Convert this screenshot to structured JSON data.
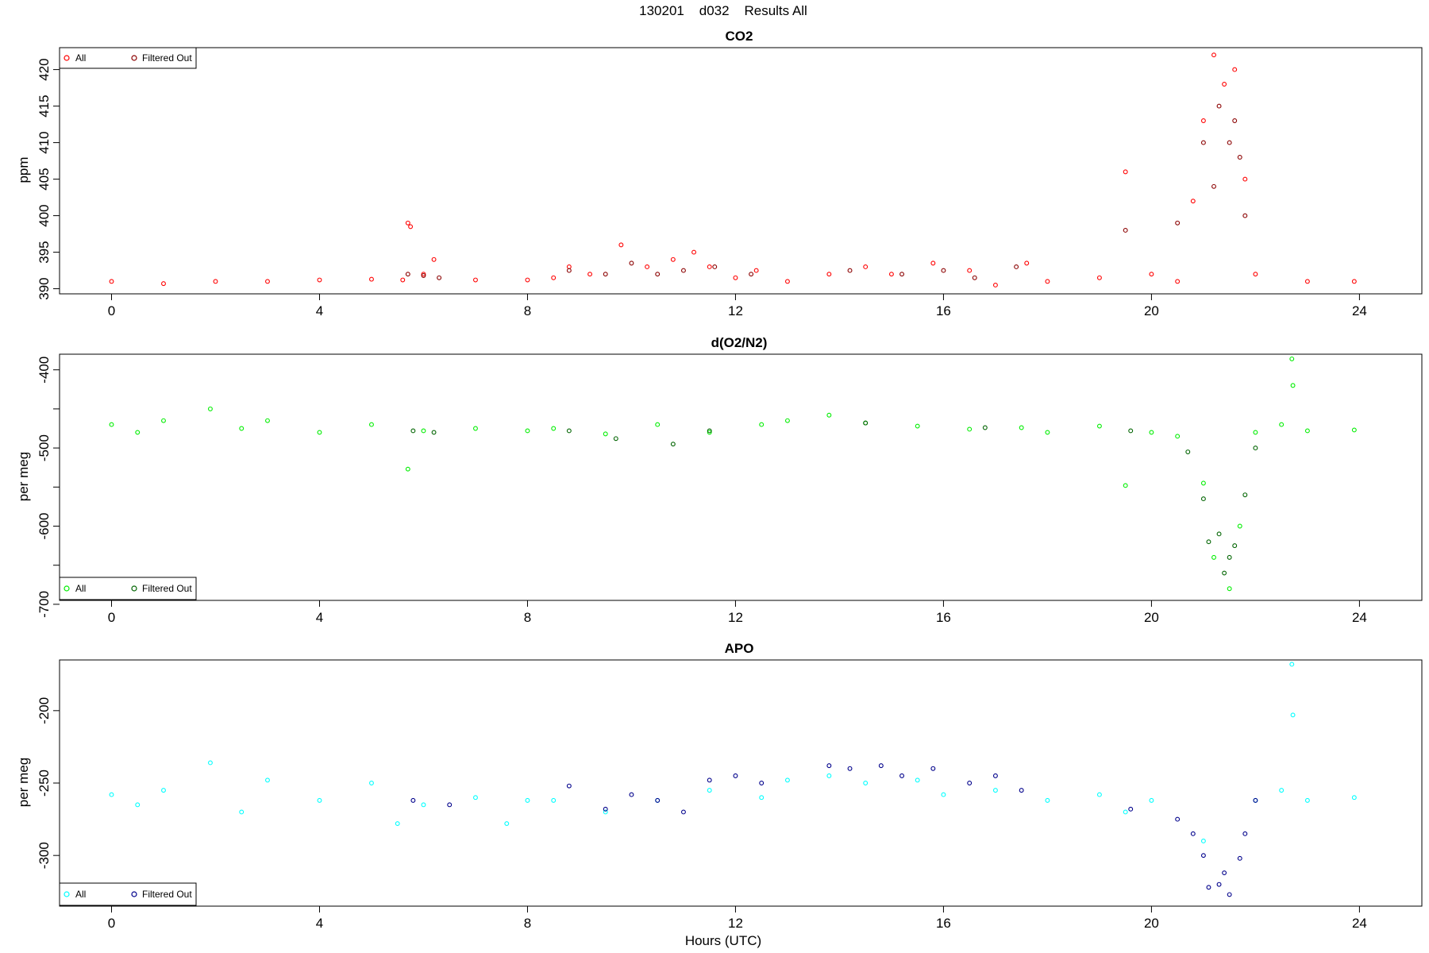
{
  "page_title": "130201    d032    Results All",
  "x_axis_label": "Hours (UTC)",
  "chart_data": [
    {
      "type": "scatter",
      "title": "CO2",
      "ylabel": "ppm",
      "xlim": [
        -1.0,
        25.2
      ],
      "ylim": [
        389.3,
        423
      ],
      "xticks": [
        0,
        4,
        8,
        12,
        16,
        20,
        24
      ],
      "yticks": [
        390,
        395,
        400,
        405,
        410,
        415,
        420
      ],
      "legend_position": "top-left",
      "legend": [
        "All",
        "Filtered Out"
      ],
      "series": [
        {
          "name": "All",
          "color": "#ff0000",
          "x": [
            0.0,
            1.0,
            2.0,
            3.0,
            4.0,
            5.0,
            5.6,
            5.7,
            5.75,
            6.0,
            6.2,
            7.0,
            8.0,
            8.5,
            8.8,
            9.2,
            9.8,
            10.3,
            10.8,
            11.2,
            11.5,
            12.0,
            12.4,
            13.0,
            13.8,
            14.5,
            15.0,
            15.8,
            16.5,
            17.0,
            17.6,
            18.0,
            19.0,
            19.5,
            20.0,
            20.5,
            20.8,
            21.0,
            21.2,
            21.4,
            21.6,
            21.8,
            22.0,
            23.0,
            23.9
          ],
          "y": [
            391,
            390.7,
            391,
            391,
            391.2,
            391.3,
            391.2,
            399,
            398.5,
            392,
            394,
            391.2,
            391.2,
            391.5,
            393,
            392,
            396,
            393,
            394,
            395,
            393,
            391.5,
            392.5,
            391,
            392,
            393,
            392,
            393.5,
            392.5,
            390.5,
            393.5,
            391,
            391.5,
            406,
            392,
            391,
            402,
            413,
            422,
            418,
            420,
            405,
            392,
            391,
            391
          ]
        },
        {
          "name": "Filtered Out",
          "color": "#8b0000",
          "x": [
            5.7,
            6.0,
            6.3,
            8.8,
            9.5,
            10.0,
            10.5,
            11.0,
            11.6,
            12.3,
            14.2,
            15.2,
            16.0,
            16.6,
            17.4,
            19.5,
            20.5,
            21.0,
            21.2,
            21.3,
            21.5,
            21.6,
            21.7,
            21.8
          ],
          "y": [
            392,
            391.8,
            391.5,
            392.5,
            392,
            393.5,
            392,
            392.5,
            393,
            392,
            392.5,
            392,
            392.5,
            391.5,
            393,
            398,
            399,
            410,
            404,
            415,
            410,
            413,
            408,
            400
          ]
        }
      ]
    },
    {
      "type": "scatter",
      "title": "d(O2/N2)",
      "ylabel": "per meg",
      "xlim": [
        -1.0,
        25.2
      ],
      "ylim": [
        -695,
        -380
      ],
      "xticks": [
        0,
        4,
        8,
        12,
        16,
        20,
        24
      ],
      "yticks": [
        -400,
        -500,
        -600,
        -700
      ],
      "minor_yticks": [
        -450,
        -550,
        -650
      ],
      "legend_position": "bottom-left",
      "legend": [
        "All",
        "Filtered Out"
      ],
      "series": [
        {
          "name": "All",
          "color": "#00ee00",
          "x": [
            0.0,
            0.5,
            1.0,
            1.9,
            2.5,
            3.0,
            4.0,
            5.0,
            5.7,
            6.0,
            7.0,
            8.0,
            8.5,
            9.5,
            10.5,
            11.5,
            12.5,
            13.0,
            13.8,
            14.5,
            15.5,
            16.5,
            17.5,
            18.0,
            19.0,
            19.5,
            20.0,
            20.5,
            21.0,
            21.2,
            21.5,
            21.7,
            22.0,
            22.5,
            22.7,
            22.72,
            23.0,
            23.9
          ],
          "y": [
            -470,
            -480,
            -465,
            -450,
            -475,
            -465,
            -480,
            -470,
            -527,
            -478,
            -475,
            -478,
            -475,
            -482,
            -470,
            -480,
            -470,
            -465,
            -458,
            -468,
            -472,
            -476,
            -474,
            -480,
            -472,
            -548,
            -480,
            -485,
            -545,
            -640,
            -680,
            -600,
            -480,
            -470,
            -386,
            -420,
            -478,
            -477
          ]
        },
        {
          "name": "Filtered Out",
          "color": "#006400",
          "x": [
            5.8,
            6.2,
            8.8,
            9.7,
            10.8,
            11.5,
            14.5,
            16.8,
            19.6,
            20.7,
            21.0,
            21.1,
            21.3,
            21.4,
            21.5,
            21.6,
            21.8,
            22.0
          ],
          "y": [
            -478,
            -480,
            -478,
            -488,
            -495,
            -478,
            -468,
            -474,
            -478,
            -505,
            -565,
            -620,
            -610,
            -660,
            -640,
            -625,
            -560,
            -500
          ]
        }
      ]
    },
    {
      "type": "scatter",
      "title": "APO",
      "ylabel": "per meg",
      "xlim": [
        -1.0,
        25.2
      ],
      "ylim": [
        -335,
        -165
      ],
      "xticks": [
        0,
        4,
        8,
        12,
        16,
        20,
        24
      ],
      "yticks": [
        -200,
        -250,
        -300
      ],
      "legend_position": "bottom-left",
      "legend": [
        "All",
        "Filtered Out"
      ],
      "series": [
        {
          "name": "All",
          "color": "#00ffff",
          "x": [
            0.0,
            0.5,
            1.0,
            1.9,
            2.5,
            3.0,
            4.0,
            5.0,
            5.5,
            6.0,
            7.0,
            7.6,
            8.0,
            8.5,
            9.5,
            10.5,
            11.5,
            12.5,
            13.0,
            13.8,
            14.5,
            15.5,
            16.0,
            17.0,
            18.0,
            19.0,
            19.5,
            20.0,
            21.0,
            22.0,
            22.5,
            22.7,
            22.72,
            23.0,
            23.9
          ],
          "y": [
            -258,
            -265,
            -255,
            -236,
            -270,
            -248,
            -262,
            -250,
            -278,
            -265,
            -260,
            -278,
            -262,
            -262,
            -270,
            -262,
            -255,
            -260,
            -248,
            -245,
            -250,
            -248,
            -258,
            -255,
            -262,
            -258,
            -270,
            -262,
            -290,
            -262,
            -255,
            -168,
            -203,
            -262,
            -260
          ]
        },
        {
          "name": "Filtered Out",
          "color": "#00008b",
          "x": [
            5.8,
            6.5,
            8.8,
            9.5,
            10.0,
            10.5,
            11.0,
            11.5,
            12.0,
            12.5,
            13.8,
            14.2,
            14.8,
            15.2,
            15.8,
            16.5,
            17.0,
            17.5,
            19.6,
            20.5,
            20.8,
            21.0,
            21.1,
            21.3,
            21.4,
            21.5,
            21.7,
            21.8,
            22.0
          ],
          "y": [
            -262,
            -265,
            -252,
            -268,
            -258,
            -262,
            -270,
            -248,
            -245,
            -250,
            -238,
            -240,
            -238,
            -245,
            -240,
            -250,
            -245,
            -255,
            -268,
            -275,
            -285,
            -300,
            -322,
            -320,
            -312,
            -327,
            -302,
            -285,
            -262
          ]
        }
      ]
    }
  ]
}
